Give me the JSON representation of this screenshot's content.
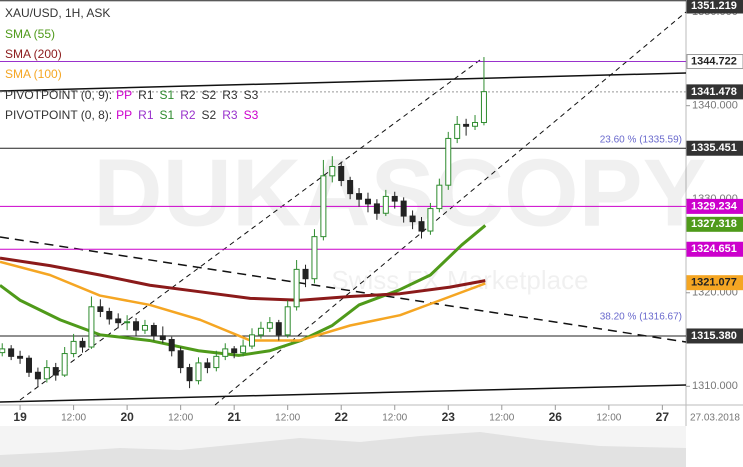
{
  "chart_data": {
    "type": "candlestick",
    "title": "XAU/USD, 1H, ASK",
    "watermark": "DUKASCOPY",
    "watermark_sub": "Swiss FX Marketplace",
    "date_stamp": "27.03.2018",
    "up_color": "#2e8b2e",
    "down_color": "#222222",
    "xlim": [
      -4.5,
      149.3
    ],
    "ylim": [
      1308,
      1351.3
    ],
    "xticks": [
      {
        "value": 0,
        "label": "19"
      },
      {
        "value": 12,
        "label": "12:00"
      },
      {
        "value": 24,
        "label": "20"
      },
      {
        "value": 36,
        "label": "12:00"
      },
      {
        "value": 48,
        "label": "21"
      },
      {
        "value": 60,
        "label": "12:00"
      },
      {
        "value": 72,
        "label": "22"
      },
      {
        "value": 84,
        "label": "12:00"
      },
      {
        "value": 96,
        "label": "23"
      },
      {
        "value": 108,
        "label": "12:00"
      },
      {
        "value": 120,
        "label": "26"
      },
      {
        "value": 132,
        "label": "12:00"
      },
      {
        "value": 144,
        "label": "27"
      }
    ],
    "yticks": [
      {
        "value": 1310,
        "label": "1310.000"
      },
      {
        "value": 1320,
        "label": "1320.000"
      },
      {
        "value": 1330,
        "label": "1330.000"
      },
      {
        "value": 1340,
        "label": "1340.000"
      },
      {
        "value": 1350,
        "label": "1350.000"
      }
    ],
    "x": [
      -4,
      -2,
      0,
      2,
      4,
      6,
      8,
      10,
      12,
      14,
      16,
      18,
      20,
      22,
      24,
      26,
      28,
      30,
      32,
      34,
      36,
      38,
      40,
      42,
      44,
      46,
      48,
      50,
      52,
      54,
      56,
      58,
      60,
      62,
      64,
      66,
      68,
      70,
      72,
      74,
      76,
      78,
      80,
      82,
      84,
      86,
      88,
      90,
      92,
      94,
      96,
      98,
      100,
      102,
      104
    ],
    "candles": [
      [
        1313.6,
        1314.6,
        1313.2,
        1314.0
      ],
      [
        1314.0,
        1314.4,
        1312.8,
        1313.2
      ],
      [
        1313.2,
        1313.8,
        1312.4,
        1313.0
      ],
      [
        1313.0,
        1313.3,
        1311.0,
        1311.5
      ],
      [
        1311.5,
        1312.0,
        1309.9,
        1310.8
      ],
      [
        1310.8,
        1312.8,
        1310.4,
        1312.0
      ],
      [
        1312.0,
        1312.5,
        1310.6,
        1311.2
      ],
      [
        1311.2,
        1314.2,
        1311.0,
        1313.5
      ],
      [
        1313.5,
        1315.6,
        1313.1,
        1314.8
      ],
      [
        1314.8,
        1315.2,
        1313.6,
        1314.2
      ],
      [
        1314.2,
        1319.6,
        1314.0,
        1318.5
      ],
      [
        1318.5,
        1319.3,
        1317.4,
        1318.0
      ],
      [
        1318.0,
        1318.4,
        1316.6,
        1317.2
      ],
      [
        1317.2,
        1317.8,
        1316.2,
        1316.8
      ],
      [
        1316.8,
        1317.6,
        1316.0,
        1316.9
      ],
      [
        1316.9,
        1317.3,
        1315.4,
        1316.0
      ],
      [
        1316.0,
        1317.1,
        1315.6,
        1316.5
      ],
      [
        1316.5,
        1316.8,
        1314.9,
        1315.4
      ],
      [
        1315.4,
        1316.4,
        1314.6,
        1315.0
      ],
      [
        1315.0,
        1315.3,
        1313.2,
        1313.8
      ],
      [
        1313.8,
        1314.2,
        1311.4,
        1312.0
      ],
      [
        1312.0,
        1312.4,
        1309.8,
        1310.6
      ],
      [
        1310.6,
        1313.1,
        1310.2,
        1312.5
      ],
      [
        1312.5,
        1313.0,
        1311.4,
        1312.0
      ],
      [
        1312.0,
        1313.8,
        1311.6,
        1313.2
      ],
      [
        1313.2,
        1314.6,
        1312.8,
        1314.0
      ],
      [
        1314.0,
        1314.3,
        1313.0,
        1313.6
      ],
      [
        1313.6,
        1315.0,
        1313.2,
        1314.3
      ],
      [
        1314.3,
        1316.2,
        1314.0,
        1315.5
      ],
      [
        1315.5,
        1316.9,
        1315.1,
        1316.2
      ],
      [
        1316.2,
        1317.4,
        1315.8,
        1316.8
      ],
      [
        1316.8,
        1317.1,
        1314.9,
        1315.5
      ],
      [
        1315.5,
        1319.2,
        1315.2,
        1318.5
      ],
      [
        1318.5,
        1323.5,
        1318.1,
        1322.5
      ],
      [
        1322.5,
        1323.0,
        1320.6,
        1321.5
      ],
      [
        1321.5,
        1326.8,
        1321.0,
        1326.0
      ],
      [
        1326.0,
        1334.2,
        1325.6,
        1332.5
      ],
      [
        1332.5,
        1334.6,
        1331.8,
        1333.5
      ],
      [
        1333.5,
        1334.0,
        1331.4,
        1332.0
      ],
      [
        1332.0,
        1332.4,
        1330.0,
        1330.6
      ],
      [
        1330.6,
        1331.2,
        1329.2,
        1330.0
      ],
      [
        1330.0,
        1330.7,
        1328.6,
        1329.5
      ],
      [
        1329.5,
        1330.0,
        1327.8,
        1328.5
      ],
      [
        1328.5,
        1331.0,
        1328.2,
        1330.3
      ],
      [
        1330.3,
        1330.8,
        1329.0,
        1329.8
      ],
      [
        1329.8,
        1330.2,
        1327.5,
        1328.2
      ],
      [
        1328.2,
        1328.8,
        1326.8,
        1327.6
      ],
      [
        1327.6,
        1328.1,
        1325.8,
        1326.6
      ],
      [
        1326.6,
        1329.6,
        1326.2,
        1329.0
      ],
      [
        1329.0,
        1332.2,
        1328.6,
        1331.5
      ],
      [
        1331.5,
        1337.2,
        1331.0,
        1336.5
      ],
      [
        1336.5,
        1338.9,
        1336.0,
        1338.0
      ],
      [
        1338.0,
        1338.6,
        1336.8,
        1337.8
      ],
      [
        1337.8,
        1339.0,
        1337.4,
        1338.2
      ],
      [
        1338.2,
        1345.2,
        1337.9,
        1341.5
      ]
    ],
    "series": [
      {
        "name": "SMA (55)",
        "color": "#4f9a1a",
        "width": 3,
        "x": [
          -4.5,
          0,
          9,
          18,
          29,
          40,
          49,
          56,
          63,
          70,
          76,
          85,
          92,
          99,
          104.3
        ],
        "values": [
          1320.8,
          1319.2,
          1317.1,
          1315.5,
          1314.9,
          1313.8,
          1313.3,
          1313.8,
          1314.9,
          1316.5,
          1318.7,
          1320.3,
          1321.9,
          1325.1,
          1327.2
        ]
      },
      {
        "name": "SMA (200)",
        "color": "#8b1a1a",
        "width": 3,
        "x": [
          -4.5,
          6.7,
          17.9,
          29.1,
          40.4,
          51.6,
          62.8,
          74,
          85.2,
          96.4,
          104.3
        ],
        "values": [
          1323.7,
          1322.9,
          1321.9,
          1320.8,
          1320.1,
          1319.4,
          1319.2,
          1319.6,
          1319.9,
          1320.6,
          1321.3
        ]
      },
      {
        "name": "SMA (100)",
        "color": "#f5a623",
        "width": 2.5,
        "x": [
          -4.5,
          6.7,
          17.9,
          29.1,
          40.4,
          51.6,
          62.8,
          74,
          85.2,
          94.2,
          104.3
        ],
        "values": [
          1323.3,
          1321.9,
          1319.7,
          1318.7,
          1317.1,
          1314.9,
          1314.9,
          1316.5,
          1317.6,
          1319.2,
          1321.0
        ]
      }
    ],
    "pivot_legends": [
      {
        "label": "PIVOTPOINT (0, 9):",
        "items": [
          {
            "text": "PP",
            "color": "#cc00cc"
          },
          {
            "text": "R1",
            "color": "#333333"
          },
          {
            "text": "S1",
            "color": "#2e8b2e"
          },
          {
            "text": "R2",
            "color": "#333333"
          },
          {
            "text": "S2",
            "color": "#333333"
          },
          {
            "text": "R3",
            "color": "#333333"
          },
          {
            "text": "S3",
            "color": "#333333"
          }
        ]
      },
      {
        "label": "PIVOTPOINT (0, 8):",
        "items": [
          {
            "text": "PP",
            "color": "#cc00cc"
          },
          {
            "text": "R1",
            "color": "#9932cc"
          },
          {
            "text": "S1",
            "color": "#2e8b2e"
          },
          {
            "text": "R2",
            "color": "#9932cc"
          },
          {
            "text": "S2",
            "color": "#333333"
          },
          {
            "text": "R3",
            "color": "#9932cc"
          },
          {
            "text": "S3",
            "color": "#cc00cc"
          }
        ]
      }
    ],
    "levels": [
      {
        "value": 1351.219,
        "label": "1351.219",
        "line_color": "#222222",
        "box": "#333333",
        "text_color": "#ffffff"
      },
      {
        "value": 1344.722,
        "label": "1344.722",
        "line_color": "#9932cc",
        "box": "#ffffff",
        "text_color": "#222222"
      },
      {
        "value": 1341.478,
        "label": "1341.478",
        "line_color": "#999999",
        "dashed": true,
        "box": "#333333",
        "text_color": "#ffffff"
      },
      {
        "value": 1335.451,
        "label": "1335.451",
        "line_color": "#222222",
        "box": "#333333",
        "text_color": "#ffffff"
      },
      {
        "value": 1329.234,
        "label": "1329.234",
        "line_color": "#cc00cc",
        "box": "#cc00cc",
        "text_color": "#ffffff"
      },
      {
        "value": 1327.318,
        "label": "1327.318",
        "box": "#4f9a1a",
        "text_color": "#ffffff"
      },
      {
        "value": 1324.651,
        "label": "1324.651",
        "line_color": "#cc00cc",
        "box": "#cc00cc",
        "text_color": "#ffffff"
      },
      {
        "value": 1321.077,
        "label": "1321.077",
        "box": "#f5a623",
        "text_color": "#222222"
      },
      {
        "value": 1315.38,
        "label": "1315.380",
        "line_color": "#222222",
        "box": "#333333",
        "text_color": "#ffffff"
      }
    ],
    "fib_annotations": [
      {
        "value": 1335.59,
        "label": "23.60 % (1335.59)"
      },
      {
        "value": 1316.67,
        "label": "38.20 % (1316.67)"
      }
    ]
  }
}
